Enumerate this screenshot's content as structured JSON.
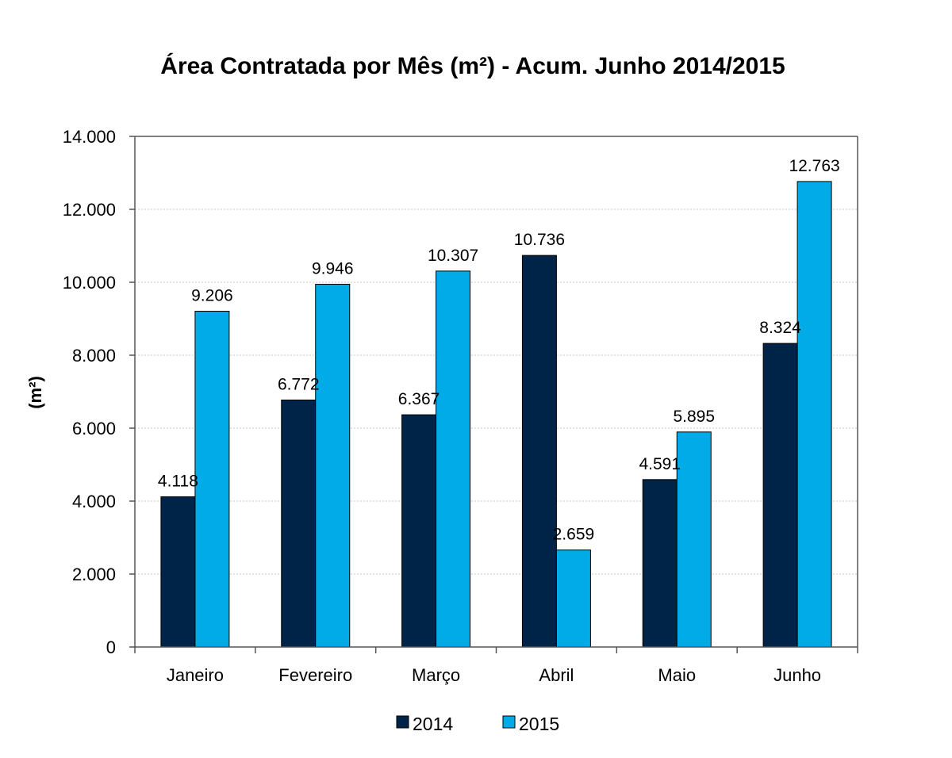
{
  "chart_data": {
    "type": "bar",
    "title": "Área Contratada por Mês (m²) - Acum. Junho 2014/2015",
    "ylabel": "(m²)",
    "xlabel": "",
    "categories": [
      "Janeiro",
      "Fevereiro",
      "Março",
      "Abril",
      "Maio",
      "Junho"
    ],
    "series": [
      {
        "name": "2014",
        "color": "#002447",
        "values": [
          4118,
          6772,
          6367,
          10736,
          4591,
          8324
        ],
        "labels": [
          "4.118",
          "6.772",
          "6.367",
          "10.736",
          "4.591",
          "8.324"
        ]
      },
      {
        "name": "2015",
        "color": "#00abe8",
        "values": [
          9206,
          9946,
          10307,
          2659,
          5895,
          12763
        ],
        "labels": [
          "9.206",
          "9.946",
          "10.307",
          "2.659",
          "5.895",
          "12.763"
        ]
      }
    ],
    "ylim": [
      0,
      14000
    ],
    "yticks": [
      0,
      2000,
      4000,
      6000,
      8000,
      10000,
      12000,
      14000
    ],
    "ytick_labels": [
      "0",
      "2.000",
      "4.000",
      "6.000",
      "8.000",
      "10.000",
      "12.000",
      "14.000"
    ],
    "grid": true,
    "legend_position": "bottom"
  }
}
